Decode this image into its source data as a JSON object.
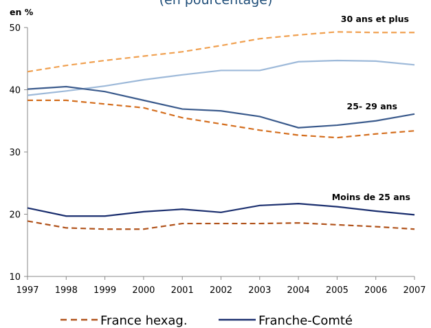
{
  "chart_data": {
    "type": "line",
    "title": "(en pourcentage)",
    "y_unit_label": "en %",
    "x": [
      1997,
      1998,
      1999,
      2000,
      2001,
      2002,
      2003,
      2004,
      2005,
      2006,
      2007
    ],
    "xlim": [
      1997,
      2007
    ],
    "xticks": [
      1997,
      1998,
      1999,
      2000,
      2001,
      2002,
      2003,
      2004,
      2005,
      2006,
      2007
    ],
    "ylim": [
      10,
      50
    ],
    "yticks": [
      10,
      20,
      30,
      40,
      50
    ],
    "groups": [
      {
        "label": "30 ans et plus",
        "series": [
          {
            "name": "France hexag.",
            "color": "#f0a050",
            "dashed": true,
            "values": [
              42.9,
              43.9,
              44.7,
              45.4,
              46.1,
              47.1,
              48.2,
              48.8,
              49.3,
              49.2,
              49.2
            ]
          },
          {
            "name": "Franche-Comté",
            "color": "#9db9d9",
            "dashed": false,
            "values": [
              39.1,
              39.8,
              40.6,
              41.6,
              42.4,
              43.1,
              43.1,
              44.5,
              44.7,
              44.6,
              44.0
            ]
          }
        ]
      },
      {
        "label": "25- 29 ans",
        "series": [
          {
            "name": "France hexag.",
            "color": "#d46e1e",
            "dashed": true,
            "values": [
              38.3,
              38.3,
              37.7,
              37.1,
              35.5,
              34.5,
              33.5,
              32.7,
              32.3,
              32.9,
              33.4
            ]
          },
          {
            "name": "Franche-Comté",
            "color": "#3a5a8c",
            "dashed": false,
            "values": [
              40.1,
              40.5,
              39.7,
              38.3,
              36.9,
              36.6,
              35.7,
              33.9,
              34.3,
              35.0,
              36.1
            ]
          }
        ]
      },
      {
        "label": "Moins de 25 ans",
        "series": [
          {
            "name": "France hexag.",
            "color": "#b0521a",
            "dashed": true,
            "values": [
              18.9,
              17.8,
              17.6,
              17.6,
              18.5,
              18.5,
              18.5,
              18.6,
              18.3,
              18.0,
              17.6
            ]
          },
          {
            "name": "Franche-Comté",
            "color": "#1a2e6e",
            "dashed": false,
            "values": [
              21.0,
              19.7,
              19.7,
              20.4,
              20.8,
              20.3,
              21.4,
              21.7,
              21.2,
              20.5,
              19.9
            ]
          }
        ]
      }
    ]
  }
}
